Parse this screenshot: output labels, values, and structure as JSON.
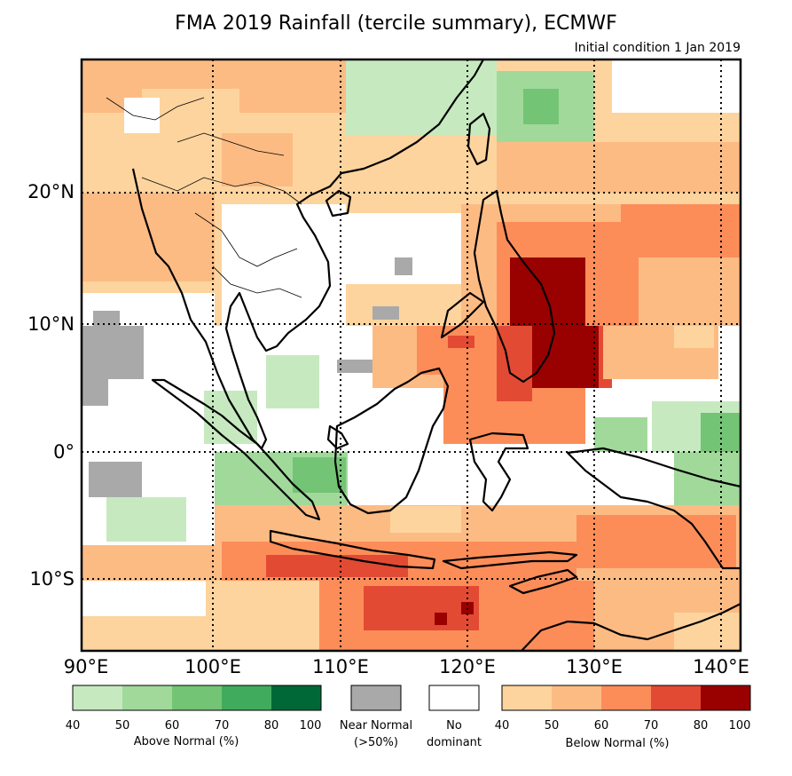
{
  "title": "FMA 2019 Rainfall (tercile summary), ECMWF",
  "subtitle": "Initial condition 1 Jan 2019",
  "map": {
    "lat_labels": [
      "20°N",
      "10°N",
      "0°",
      "10°S"
    ],
    "lon_labels": [
      "90°E",
      "100°E",
      "110°E",
      "120°E",
      "130°E",
      "140°E"
    ],
    "extent": {
      "lon": [
        90,
        142
      ],
      "lat": [
        -15.5,
        30
      ]
    }
  },
  "legend": {
    "above_normal": {
      "label": "Above Normal (%)",
      "ticks": [
        "40",
        "50",
        "60",
        "70",
        "80",
        "100"
      ],
      "colors": [
        "#c7e9c0",
        "#a1d99b",
        "#74c476",
        "#41ab5d",
        "#006837"
      ]
    },
    "near_normal": {
      "label1": "Near Normal",
      "label2": "(>50%)",
      "color": "#a9a9a9"
    },
    "no_dominant": {
      "label1": "No",
      "label2": "dominant",
      "color": "#ffffff"
    },
    "below_normal": {
      "label": "Below Normal (%)",
      "ticks": [
        "40",
        "50",
        "60",
        "70",
        "80",
        "100"
      ],
      "colors": [
        "#fdd49e",
        "#fdbb84",
        "#fc8d59",
        "#e34a33",
        "#990000"
      ]
    }
  }
}
